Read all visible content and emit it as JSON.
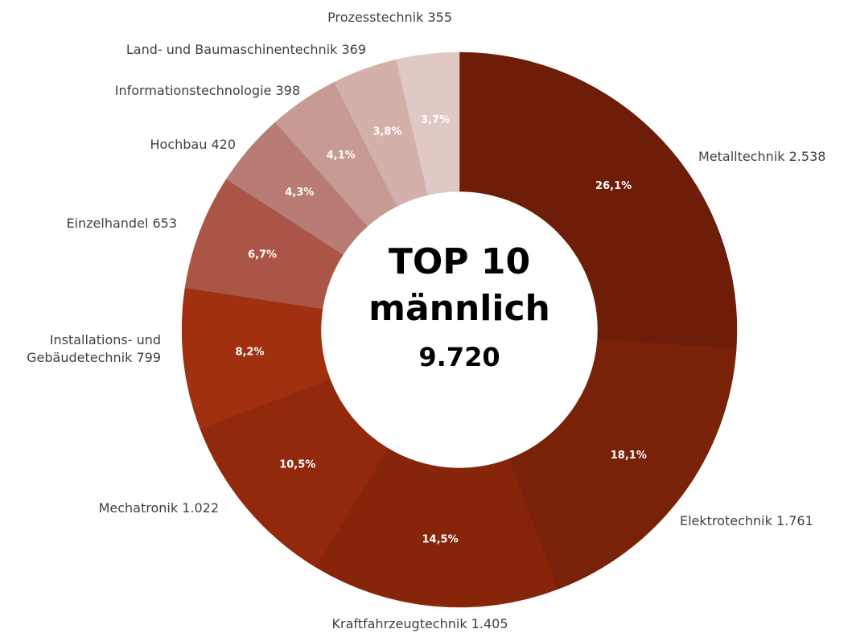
{
  "chart_data": {
    "type": "donut",
    "center_text": [
      "TOP 10",
      "männlich"
    ],
    "total_label": "9.720",
    "categories": [
      "Metalltechnik",
      "Elektrotechnik",
      "Kraftfahrzeugtechnik",
      "Mechatronik",
      "Installations- und Gebäudetechnik",
      "Einzelhandel",
      "Hochbau",
      "Informationstechnologie",
      "Land- und Baumaschinentechnik",
      "Prozesstechnik"
    ],
    "values": [
      2538,
      1761,
      1405,
      1022,
      799,
      653,
      420,
      398,
      369,
      355
    ],
    "value_labels": [
      "2.538",
      "1.761",
      "1.405",
      "1.022",
      "799",
      "653",
      "420",
      "398",
      "369",
      "355"
    ],
    "percentages": [
      26.1,
      18.1,
      14.5,
      10.5,
      8.2,
      6.7,
      4.3,
      4.1,
      3.8,
      3.7
    ],
    "percentage_labels": [
      "26,1%",
      "18,1%",
      "14,5%",
      "10,5%",
      "8,2%",
      "6,7%",
      "4,3%",
      "4,1%",
      "3,8%",
      "3,7%"
    ],
    "colors": [
      "#6e1e08",
      "#7a2209",
      "#862509",
      "#93290c",
      "#a0300f",
      "#ab5546",
      "#b87c74",
      "#c89a94",
      "#d4b0ab",
      "#e0c8c5"
    ]
  }
}
